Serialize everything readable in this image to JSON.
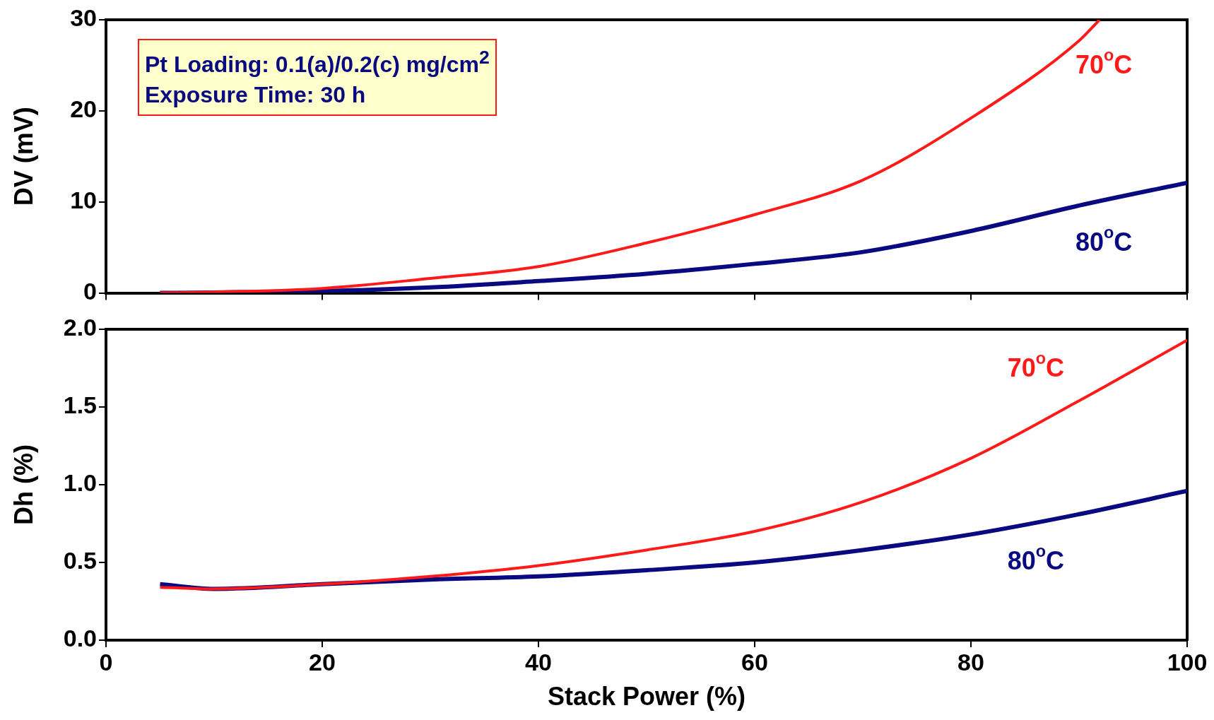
{
  "chart_data": [
    {
      "type": "line",
      "ylabel": "DV (mV)",
      "xlim": [
        0,
        100
      ],
      "xticks": [
        0,
        20,
        40,
        60,
        80,
        100
      ],
      "ylim": [
        0,
        30
      ],
      "yticks": [
        0,
        10,
        20,
        30
      ],
      "tick_labels": "y",
      "grid": false,
      "legend": false,
      "marker": "none",
      "line_style": "solid",
      "annotations": [
        "Pt Loading: 0.1(a)/0.2(c) mg/cm$^{2}$",
        "Exposure Time: 30 h"
      ],
      "series": [
        {
          "name": "70$^{o}$C",
          "color": "#ff1a1a",
          "x": [
            5,
            10,
            20,
            30,
            40,
            50,
            60,
            70,
            80,
            90,
            91.9
          ],
          "values": [
            0,
            0.1,
            0.5,
            1.6,
            2.9,
            5.5,
            8.6,
            12.4,
            19.2,
            27.7,
            30
          ]
        },
        {
          "name": "80$^{o}$C",
          "color": "#0a0a80",
          "x": [
            5,
            10,
            20,
            30,
            40,
            50,
            60,
            70,
            80,
            90,
            100
          ],
          "values": [
            0,
            0.05,
            0.2,
            0.6,
            1.3,
            2.1,
            3.2,
            4.5,
            6.8,
            9.6,
            12.1
          ]
        }
      ]
    },
    {
      "type": "line",
      "ylabel": "Dh (%)",
      "xlabel": "Stack Power (%)",
      "xlim": [
        0,
        100
      ],
      "xticks": [
        0,
        20,
        40,
        60,
        80,
        100
      ],
      "ylim": [
        0,
        2
      ],
      "yticks": [
        {
          "value": 0,
          "label": "0.0"
        },
        0.5,
        {
          "value": 1,
          "label": "1.0"
        },
        1.5,
        {
          "value": 2,
          "label": "2.0"
        }
      ],
      "grid": false,
      "legend": false,
      "marker": "none",
      "line_style": "solid",
      "series": [
        {
          "name": "70$^{o}$C",
          "color": "#ff1a1a",
          "x": [
            5,
            10,
            20,
            30,
            40,
            50,
            60,
            70,
            80,
            90,
            100
          ],
          "values": [
            0.34,
            0.33,
            0.36,
            0.41,
            0.48,
            0.58,
            0.7,
            0.89,
            1.17,
            1.54,
            1.93
          ]
        },
        {
          "name": "80$^{o}$C",
          "color": "#0a0a80",
          "x": [
            5,
            10,
            20,
            30,
            40,
            50,
            60,
            70,
            80,
            90,
            100
          ],
          "values": [
            0.36,
            0.33,
            0.36,
            0.39,
            0.41,
            0.45,
            0.5,
            0.58,
            0.68,
            0.81,
            0.96
          ]
        }
      ]
    }
  ]
}
